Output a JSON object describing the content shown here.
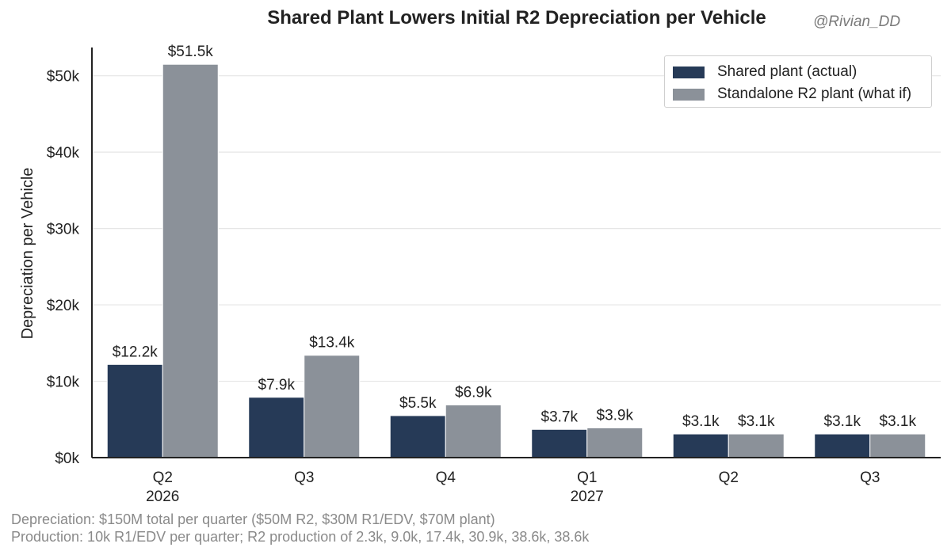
{
  "title": "Shared Plant Lowers Initial R2 Depreciation per Vehicle",
  "watermark": "@Rivian_DD",
  "notes": {
    "line1": "Depreciation: $150M total per quarter ($50M R2, $30M R1/EDV, $70M plant)",
    "line2": "Production: 10k R1/EDV per quarter; R2 production of 2.3k, 9.0k, 17.4k, 30.9k, 38.6k, 38.6k"
  },
  "colors": {
    "shared": "#263a57",
    "standalone": "#8b9199",
    "grid": "#e6e6e6",
    "axis": "#222222"
  },
  "chart_data": {
    "type": "bar",
    "categories": [
      "Q2",
      "Q3",
      "Q4",
      "Q1",
      "Q2",
      "Q3"
    ],
    "category_years": [
      "2026",
      "",
      "",
      "2027",
      "",
      ""
    ],
    "ylabel": "Depreciation per Vehicle",
    "xlabel": "",
    "ylim": [
      0,
      53700
    ],
    "yticks": [
      0,
      10000,
      20000,
      30000,
      40000,
      50000
    ],
    "ytick_labels": [
      "$0k",
      "$10k",
      "$20k",
      "$30k",
      "$40k",
      "$50k"
    ],
    "grid": "horizontal",
    "legend_position": "top-right",
    "series": [
      {
        "name": "Shared plant (actual)",
        "values": [
          12200,
          7900,
          5500,
          3700,
          3100,
          3100
        ],
        "labels": [
          "$12.2k",
          "$7.9k",
          "$5.5k",
          "$3.7k",
          "$3.1k",
          "$3.1k"
        ]
      },
      {
        "name": "Standalone R2 plant (what if)",
        "values": [
          51500,
          13400,
          6900,
          3900,
          3100,
          3100
        ],
        "labels": [
          "$51.5k",
          "$13.4k",
          "$6.9k",
          "$3.9k",
          "$3.1k",
          "$3.1k"
        ]
      }
    ]
  }
}
